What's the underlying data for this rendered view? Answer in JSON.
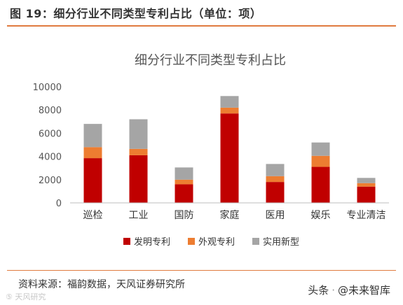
{
  "figure": {
    "title": "图 19：细分行业不同类型专利占比（单位：项）",
    "source": "资料来源：福韵数据，天风证券研究所",
    "watermark_left": "⑤ 天风研究",
    "watermark_right_a": "头条",
    "watermark_right_b": "@未来智库"
  },
  "colors": {
    "invention": "#c00000",
    "design": "#ed7d31",
    "utility": "#a5a5a5",
    "accent_rule": "#e07b3f"
  },
  "chart_data": {
    "type": "bar",
    "stacked": true,
    "title": "细分行业不同类型专利占比",
    "categories": [
      "巡检",
      "工业",
      "国防",
      "家庭",
      "医用",
      "娱乐",
      "专业清洁"
    ],
    "series": [
      {
        "name": "发明专利",
        "color": "#c00000",
        "values": [
          3850,
          4100,
          1600,
          7700,
          1800,
          3100,
          1400
        ]
      },
      {
        "name": "外观专利",
        "color": "#ed7d31",
        "values": [
          950,
          550,
          400,
          500,
          500,
          950,
          300
        ]
      },
      {
        "name": "实用新型",
        "color": "#a5a5a5",
        "values": [
          2000,
          2550,
          1050,
          1000,
          1050,
          1150,
          450
        ]
      }
    ],
    "ylim": [
      0,
      10000
    ],
    "yticks": [
      0,
      2000,
      4000,
      6000,
      8000,
      10000
    ],
    "grid": false,
    "legend": "bottom"
  }
}
